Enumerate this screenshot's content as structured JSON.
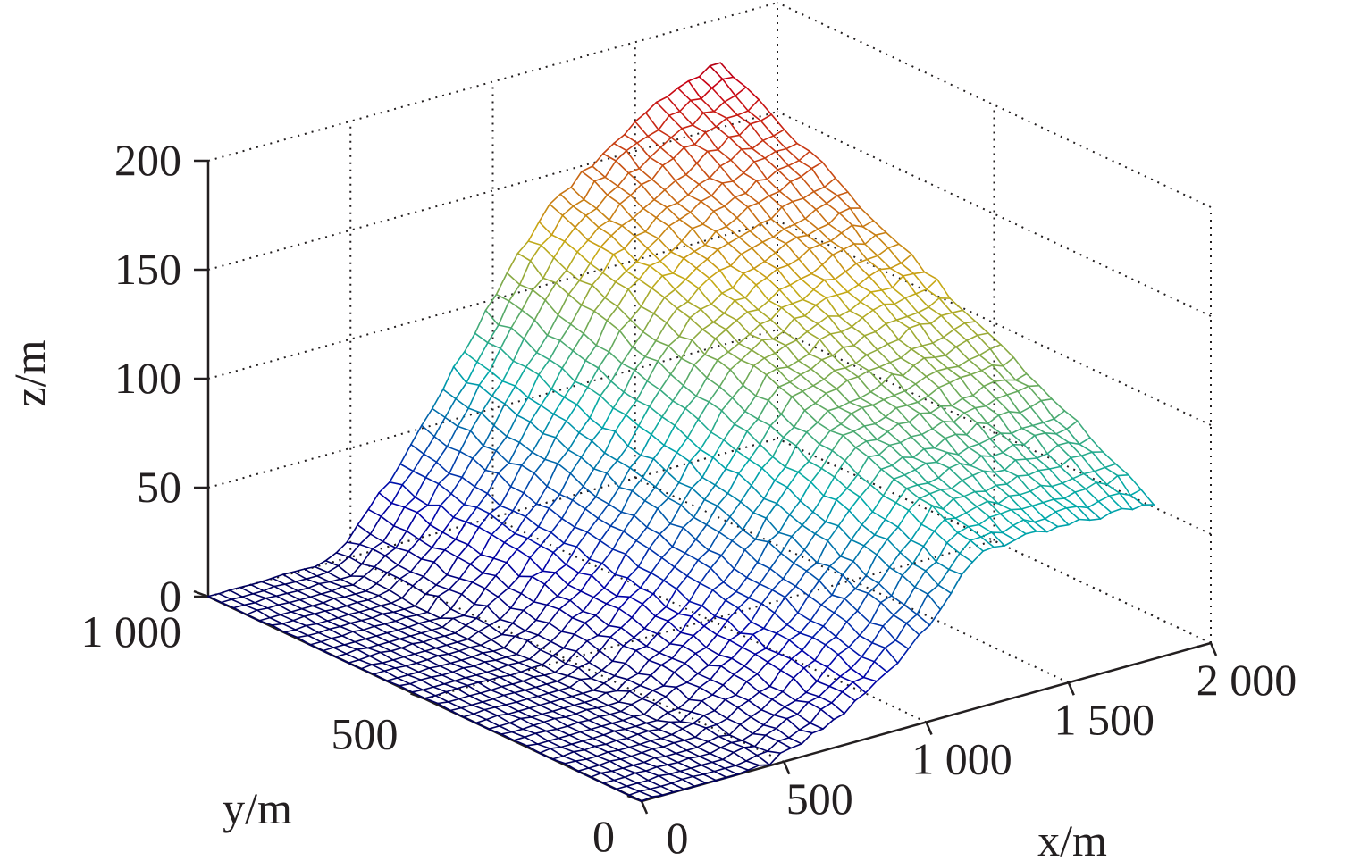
{
  "chart_data": {
    "type": "surface",
    "style": "3d-mesh",
    "xlabel": "x/m",
    "ylabel": "y/m",
    "zlabel": "z/m",
    "xlim": [
      0,
      2000
    ],
    "ylim": [
      0,
      1000
    ],
    "zlim": [
      0,
      200
    ],
    "x_ticks": [
      "0",
      "500",
      "1 000",
      "1 500",
      "2 000"
    ],
    "y_ticks": [
      "0",
      "500",
      "1 000"
    ],
    "z_ticks": [
      "0",
      "50",
      "100",
      "150",
      "200"
    ],
    "grid": true,
    "colormap": "jet",
    "surface_x_range": [
      0,
      1800
    ],
    "surface_y_range": [
      0,
      1000
    ],
    "terrain": {
      "flat_region_x_max": 400,
      "slope_end_x": 1150,
      "profile_x": [
        0,
        400,
        500,
        600,
        700,
        800,
        900,
        1000,
        1100,
        1200,
        1400,
        1600,
        1800
      ],
      "profile_z_at_y0": [
        0,
        0,
        3,
        8,
        14,
        22,
        32,
        44,
        58,
        72,
        72,
        72,
        72
      ],
      "profile_z_at_y1000": [
        0,
        0,
        10,
        25,
        40,
        60,
        80,
        100,
        120,
        135,
        155,
        170,
        180
      ],
      "max_z": 190
    }
  }
}
